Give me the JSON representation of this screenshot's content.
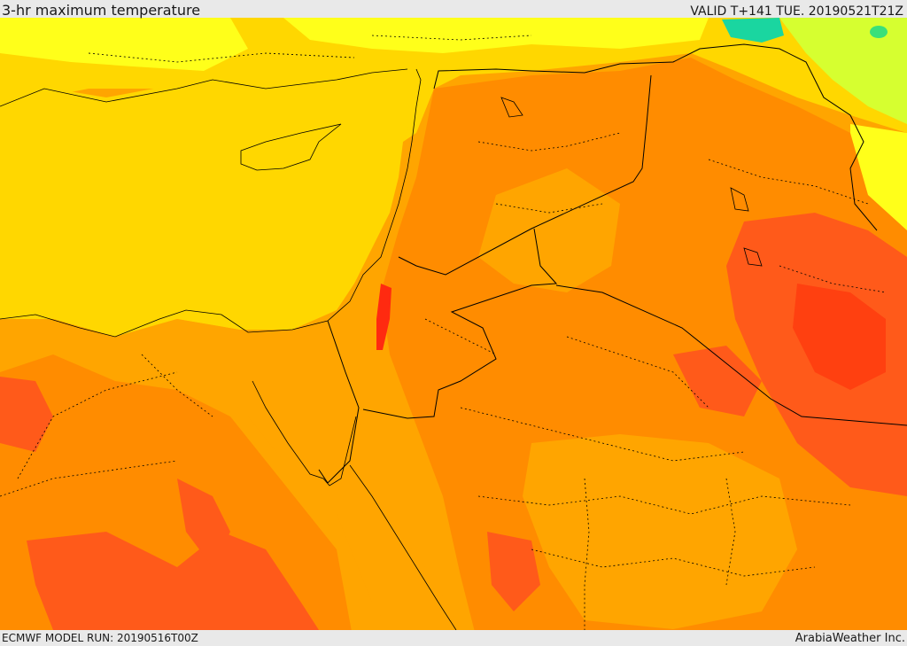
{
  "header": {
    "title": "3-hr maximum temperature",
    "valid": "VALID T+141 TUE. 20190521T21Z"
  },
  "footer": {
    "model_run": "ECMWF MODEL RUN: 20190516T00Z",
    "credit": "ArabiaWeather Inc."
  },
  "colors": {
    "sea": "#ffd700",
    "hot_orange": "#ff8c00",
    "warm_orange": "#ffa500",
    "very_hot": "#ff5a1a",
    "extreme": "#ff2a10",
    "cool_yellow": "#ffff1a",
    "mild_green": "#b5ff3a",
    "cold_teal": "#1ad6a0",
    "border": "#000000"
  }
}
